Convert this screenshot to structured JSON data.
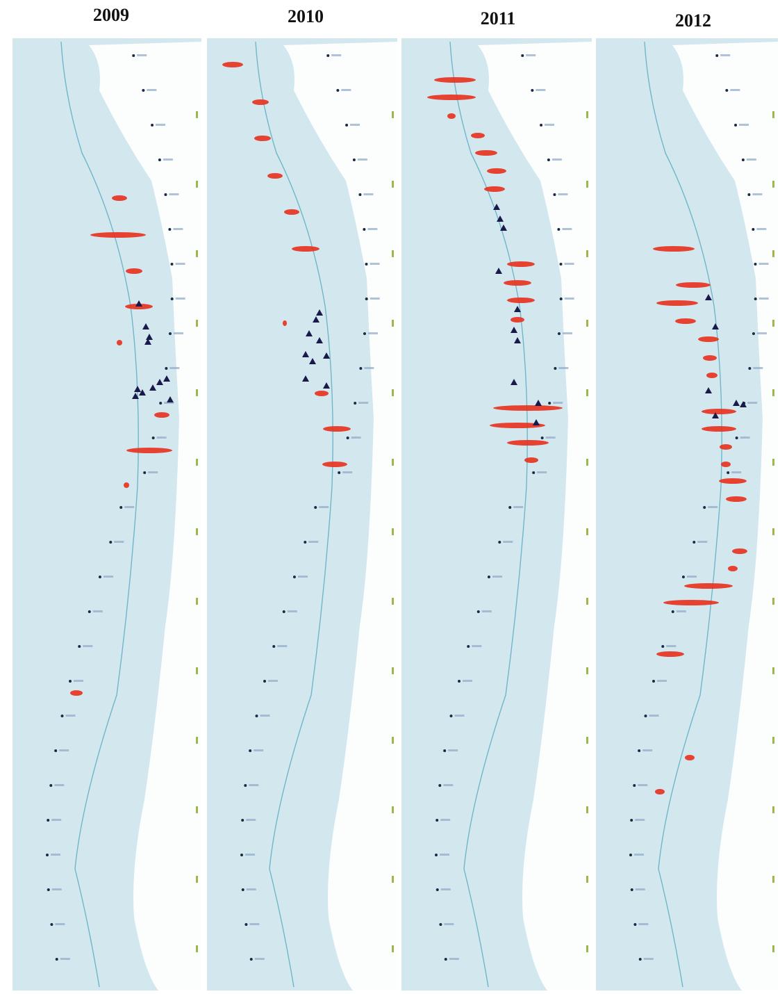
{
  "panels": [
    {
      "title": "2009"
    },
    {
      "title": "2010"
    },
    {
      "title": "2011"
    },
    {
      "title": "2012"
    }
  ]
}
